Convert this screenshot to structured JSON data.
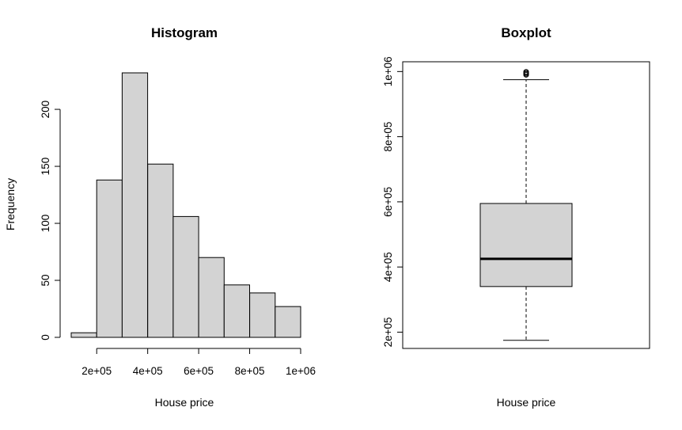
{
  "chart_data": [
    {
      "type": "bar",
      "title": "Histogram",
      "xlabel": "House price",
      "ylabel": "Frequency",
      "bins": [
        {
          "from": 100000,
          "to": 200000,
          "count": 4
        },
        {
          "from": 200000,
          "to": 300000,
          "count": 138
        },
        {
          "from": 300000,
          "to": 400000,
          "count": 232
        },
        {
          "from": 400000,
          "to": 500000,
          "count": 152
        },
        {
          "from": 500000,
          "to": 600000,
          "count": 106
        },
        {
          "from": 600000,
          "to": 700000,
          "count": 70
        },
        {
          "from": 700000,
          "to": 800000,
          "count": 46
        },
        {
          "from": 800000,
          "to": 900000,
          "count": 39
        },
        {
          "from": 900000,
          "to": 1000000,
          "count": 27
        }
      ],
      "xlim": [
        100000,
        1000000
      ],
      "ylim": [
        0,
        232
      ],
      "x_ticks": [
        200000,
        400000,
        600000,
        800000,
        1000000
      ],
      "x_tick_labels": [
        "2e+05",
        "4e+05",
        "6e+05",
        "8e+05",
        "1e+06"
      ],
      "y_ticks": [
        0,
        50,
        100,
        150,
        200
      ],
      "y_tick_labels": [
        "0",
        "50",
        "100",
        "150",
        "200"
      ],
      "bar_fill": "#d3d3d3",
      "grid": false
    },
    {
      "type": "boxplot",
      "title": "Boxplot",
      "xlabel": "House price",
      "ylabel": "",
      "stats": {
        "whisker_low": 175000,
        "q1": 340000,
        "median": 425000,
        "q3": 595000,
        "whisker_high": 975000
      },
      "outliers": [
        990000,
        993000,
        996000,
        999000
      ],
      "ylim": [
        150000,
        1030000
      ],
      "y_ticks": [
        200000,
        400000,
        600000,
        800000,
        1000000
      ],
      "y_tick_labels": [
        "2e+05",
        "4e+05",
        "6e+05",
        "8e+05",
        "1e+06"
      ],
      "box_fill": "#d3d3d3",
      "grid": false
    }
  ]
}
